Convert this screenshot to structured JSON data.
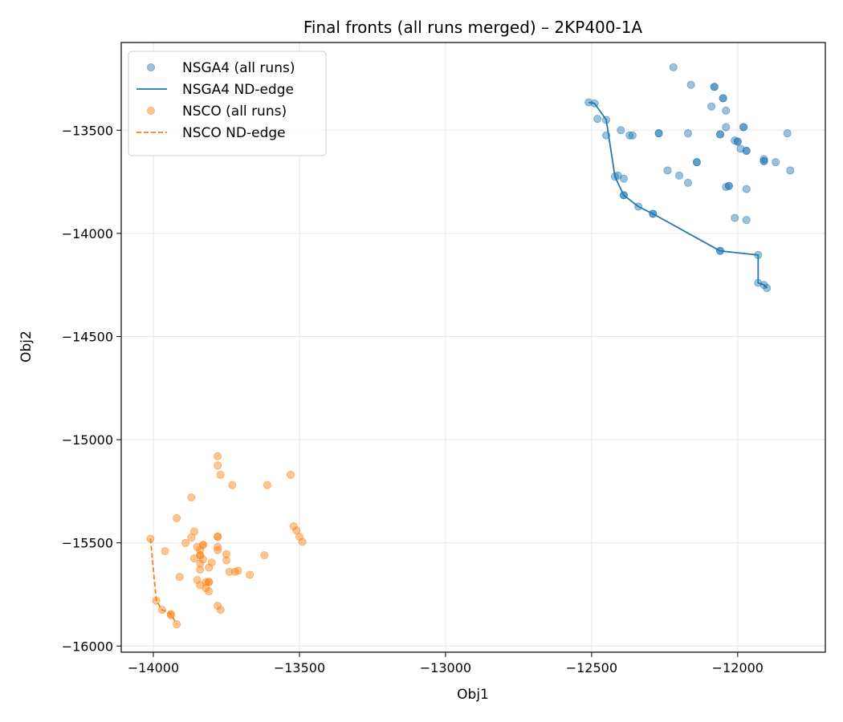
{
  "chart_data": {
    "type": "scatter",
    "title": "Final fronts (all runs merged) – 2KP400-1A",
    "xlabel": "Obj1",
    "ylabel": "Obj2",
    "xlim": [
      -14110,
      -11700
    ],
    "ylim": [
      -16030,
      -13075
    ],
    "xticks": [
      -14000,
      -13500,
      -13000,
      -12500,
      -12000
    ],
    "yticks": [
      -16000,
      -15500,
      -15000,
      -14500,
      -14000,
      -13500
    ],
    "tick_labels_x": [
      "−14000",
      "−13500",
      "−13000",
      "−12500",
      "−12000"
    ],
    "tick_labels_y": [
      "−16000",
      "−15500",
      "−15000",
      "−14500",
      "−14000",
      "−13500"
    ],
    "grid": true,
    "legend_position": "top-left",
    "colors": {
      "nsga4": "#1f77b4",
      "nsco": "#ff7f0e"
    },
    "legend": [
      {
        "label": "NSGA4 (all runs)",
        "kind": "marker",
        "series": "nsga4"
      },
      {
        "label": "NSGA4 ND-edge",
        "kind": "line",
        "series": "nsga4"
      },
      {
        "label": "NSCO (all runs)",
        "kind": "marker",
        "series": "nsco"
      },
      {
        "label": "NSCO ND-edge",
        "kind": "dashed",
        "series": "nsco"
      }
    ],
    "series": [
      {
        "name": "NSGA4 (all runs)",
        "kind": "scatter",
        "color": "#1f77b4",
        "points": [
          [
            -12220,
            -13195
          ],
          [
            -12160,
            -13280
          ],
          [
            -12080,
            -13290
          ],
          [
            -12080,
            -13290
          ],
          [
            -12050,
            -13345
          ],
          [
            -12050,
            -13345
          ],
          [
            -12090,
            -13385
          ],
          [
            -12040,
            -13405
          ],
          [
            -12510,
            -13365
          ],
          [
            -12490,
            -13370
          ],
          [
            -12480,
            -13445
          ],
          [
            -12450,
            -13450
          ],
          [
            -12450,
            -13525
          ],
          [
            -12370,
            -13525
          ],
          [
            -12360,
            -13525
          ],
          [
            -12400,
            -13500
          ],
          [
            -12270,
            -13515
          ],
          [
            -12270,
            -13515
          ],
          [
            -12170,
            -13515
          ],
          [
            -12060,
            -13520
          ],
          [
            -12060,
            -13520
          ],
          [
            -12040,
            -13485
          ],
          [
            -11980,
            -13485
          ],
          [
            -11980,
            -13485
          ],
          [
            -12010,
            -13550
          ],
          [
            -12000,
            -13555
          ],
          [
            -12000,
            -13555
          ],
          [
            -11990,
            -13590
          ],
          [
            -11970,
            -13600
          ],
          [
            -11970,
            -13600
          ],
          [
            -11830,
            -13515
          ],
          [
            -11910,
            -13640
          ],
          [
            -11910,
            -13650
          ],
          [
            -11910,
            -13650
          ],
          [
            -11870,
            -13655
          ],
          [
            -12140,
            -13655
          ],
          [
            -12140,
            -13655
          ],
          [
            -11820,
            -13695
          ],
          [
            -12240,
            -13695
          ],
          [
            -12200,
            -13720
          ],
          [
            -12170,
            -13755
          ],
          [
            -12420,
            -13725
          ],
          [
            -12410,
            -13720
          ],
          [
            -12390,
            -13735
          ],
          [
            -12040,
            -13775
          ],
          [
            -12030,
            -13770
          ],
          [
            -12030,
            -13770
          ],
          [
            -11970,
            -13785
          ],
          [
            -12390,
            -13815
          ],
          [
            -12390,
            -13815
          ],
          [
            -12340,
            -13870
          ],
          [
            -12290,
            -13905
          ],
          [
            -12290,
            -13905
          ],
          [
            -12010,
            -13925
          ],
          [
            -11970,
            -13935
          ],
          [
            -12060,
            -14085
          ],
          [
            -12060,
            -14085
          ],
          [
            -11930,
            -14105
          ],
          [
            -11930,
            -14240
          ],
          [
            -11910,
            -14250
          ],
          [
            -11900,
            -14265
          ]
        ]
      },
      {
        "name": "NSGA4 ND-edge",
        "kind": "line",
        "color": "#1f77b4",
        "points": [
          [
            -12510,
            -13365
          ],
          [
            -12490,
            -13370
          ],
          [
            -12450,
            -13450
          ],
          [
            -12420,
            -13725
          ],
          [
            -12390,
            -13815
          ],
          [
            -12340,
            -13870
          ],
          [
            -12290,
            -13905
          ],
          [
            -12060,
            -14085
          ],
          [
            -11930,
            -14105
          ],
          [
            -11930,
            -14240
          ],
          [
            -11910,
            -14250
          ],
          [
            -11900,
            -14265
          ]
        ]
      },
      {
        "name": "NSCO (all runs)",
        "kind": "scatter",
        "color": "#ff7f0e",
        "points": [
          [
            -13780,
            -15080
          ],
          [
            -13780,
            -15125
          ],
          [
            -13770,
            -15170
          ],
          [
            -13730,
            -15220
          ],
          [
            -13610,
            -15220
          ],
          [
            -13530,
            -15170
          ],
          [
            -13870,
            -15280
          ],
          [
            -13920,
            -15380
          ],
          [
            -13520,
            -15420
          ],
          [
            -13510,
            -15440
          ],
          [
            -13500,
            -15470
          ],
          [
            -13490,
            -15495
          ],
          [
            -13860,
            -15445
          ],
          [
            -13870,
            -15475
          ],
          [
            -13890,
            -15500
          ],
          [
            -13780,
            -15470
          ],
          [
            -13780,
            -15470
          ],
          [
            -13850,
            -15520
          ],
          [
            -13840,
            -15535
          ],
          [
            -13830,
            -15510
          ],
          [
            -13830,
            -15510
          ],
          [
            -13780,
            -15520
          ],
          [
            -13780,
            -15535
          ],
          [
            -13750,
            -15555
          ],
          [
            -13840,
            -15560
          ],
          [
            -13840,
            -15560
          ],
          [
            -13860,
            -15575
          ],
          [
            -13830,
            -15580
          ],
          [
            -13750,
            -15585
          ],
          [
            -13620,
            -15560
          ],
          [
            -13960,
            -15540
          ],
          [
            -13800,
            -15595
          ],
          [
            -13810,
            -15620
          ],
          [
            -13840,
            -15600
          ],
          [
            -13840,
            -15630
          ],
          [
            -13740,
            -15640
          ],
          [
            -13720,
            -15640
          ],
          [
            -13710,
            -15635
          ],
          [
            -13670,
            -15655
          ],
          [
            -13910,
            -15665
          ],
          [
            -13850,
            -15680
          ],
          [
            -13820,
            -15690
          ],
          [
            -13810,
            -15690
          ],
          [
            -13810,
            -15690
          ],
          [
            -13840,
            -15705
          ],
          [
            -13820,
            -15720
          ],
          [
            -13810,
            -15735
          ],
          [
            -14010,
            -15480
          ],
          [
            -13990,
            -15780
          ],
          [
            -13970,
            -15825
          ],
          [
            -13940,
            -15845
          ],
          [
            -13940,
            -15850
          ],
          [
            -13780,
            -15805
          ],
          [
            -13770,
            -15825
          ],
          [
            -13920,
            -15895
          ]
        ]
      },
      {
        "name": "NSCO ND-edge",
        "kind": "dashed",
        "color": "#ff7f0e",
        "points": [
          [
            -14010,
            -15480
          ],
          [
            -13990,
            -15780
          ],
          [
            -13970,
            -15825
          ],
          [
            -13940,
            -15845
          ],
          [
            -13920,
            -15895
          ]
        ]
      }
    ]
  }
}
